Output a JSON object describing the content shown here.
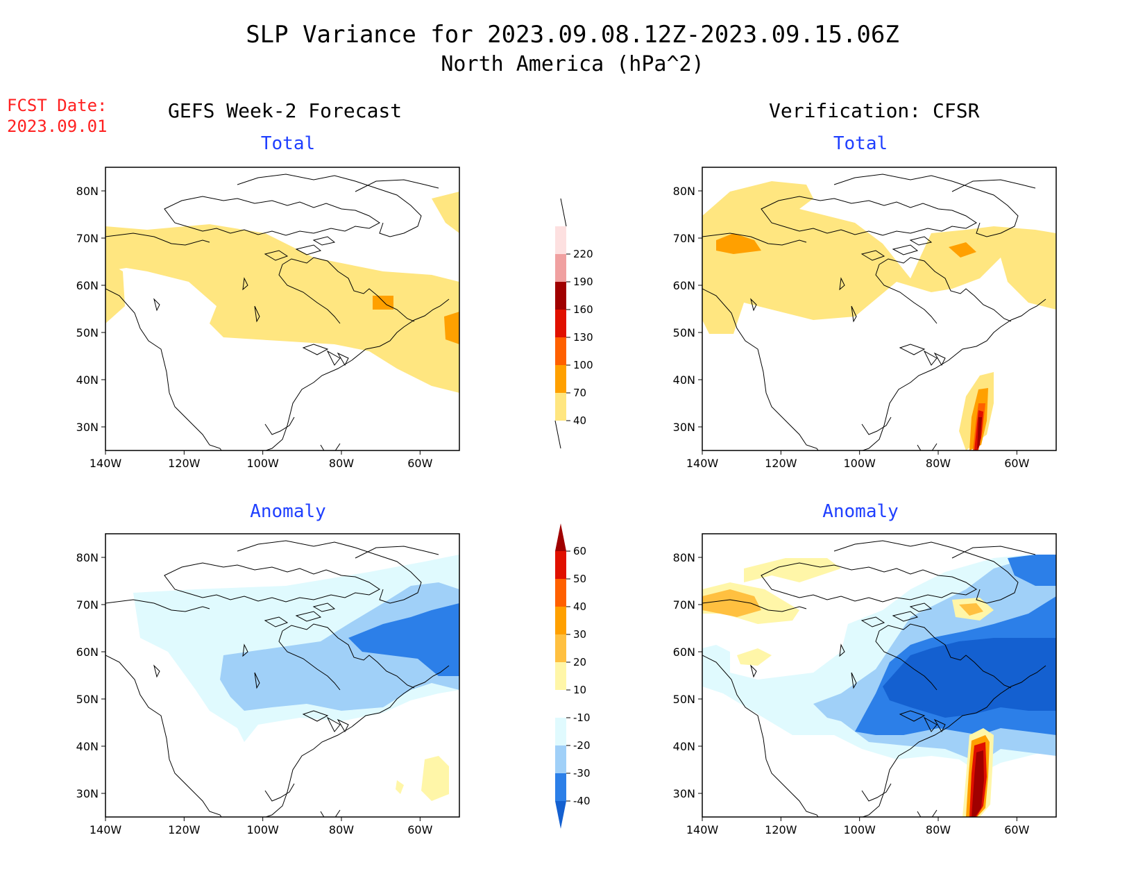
{
  "title": {
    "line1": "SLP Variance for 2023.09.08.12Z-2023.09.15.06Z",
    "line2": "North America (hPa^2)"
  },
  "forecast_date": {
    "label": "FCST Date:",
    "value": "2023.09.01"
  },
  "columns": {
    "left": "GEFS Week-2 Forecast",
    "right": "Verification: CFSR"
  },
  "panels": {
    "top_left": "Total",
    "top_right": "Total",
    "bottom_left": "Anomaly",
    "bottom_right": "Anomaly"
  },
  "axes": {
    "lat_labels": [
      "80N",
      "70N",
      "60N",
      "50N",
      "40N",
      "30N"
    ],
    "lon_labels": [
      "140W",
      "120W",
      "100W",
      "80W",
      "60W"
    ],
    "lat_range": [
      25,
      85
    ],
    "lon_range": [
      -140,
      -50
    ]
  },
  "colorbars": {
    "total": {
      "labels": [
        "40",
        "70",
        "100",
        "130",
        "160",
        "190",
        "220"
      ],
      "colors": [
        "#ffe680",
        "#ffa000",
        "#ff6000",
        "#e01000",
        "#a00000",
        "#f0a0a0",
        "#fde0e0"
      ]
    },
    "anomaly": {
      "labels": [
        "-40",
        "-30",
        "-20",
        "-10",
        "10",
        "20",
        "30",
        "40",
        "50",
        "60"
      ],
      "colors": [
        "#1460d0",
        "#2c7fe8",
        "#a0d0f8",
        "#e0fafe",
        "#ffffff",
        "#fff6a8",
        "#ffc040",
        "#ffa000",
        "#ff6000",
        "#e01000",
        "#a00000"
      ]
    }
  }
}
